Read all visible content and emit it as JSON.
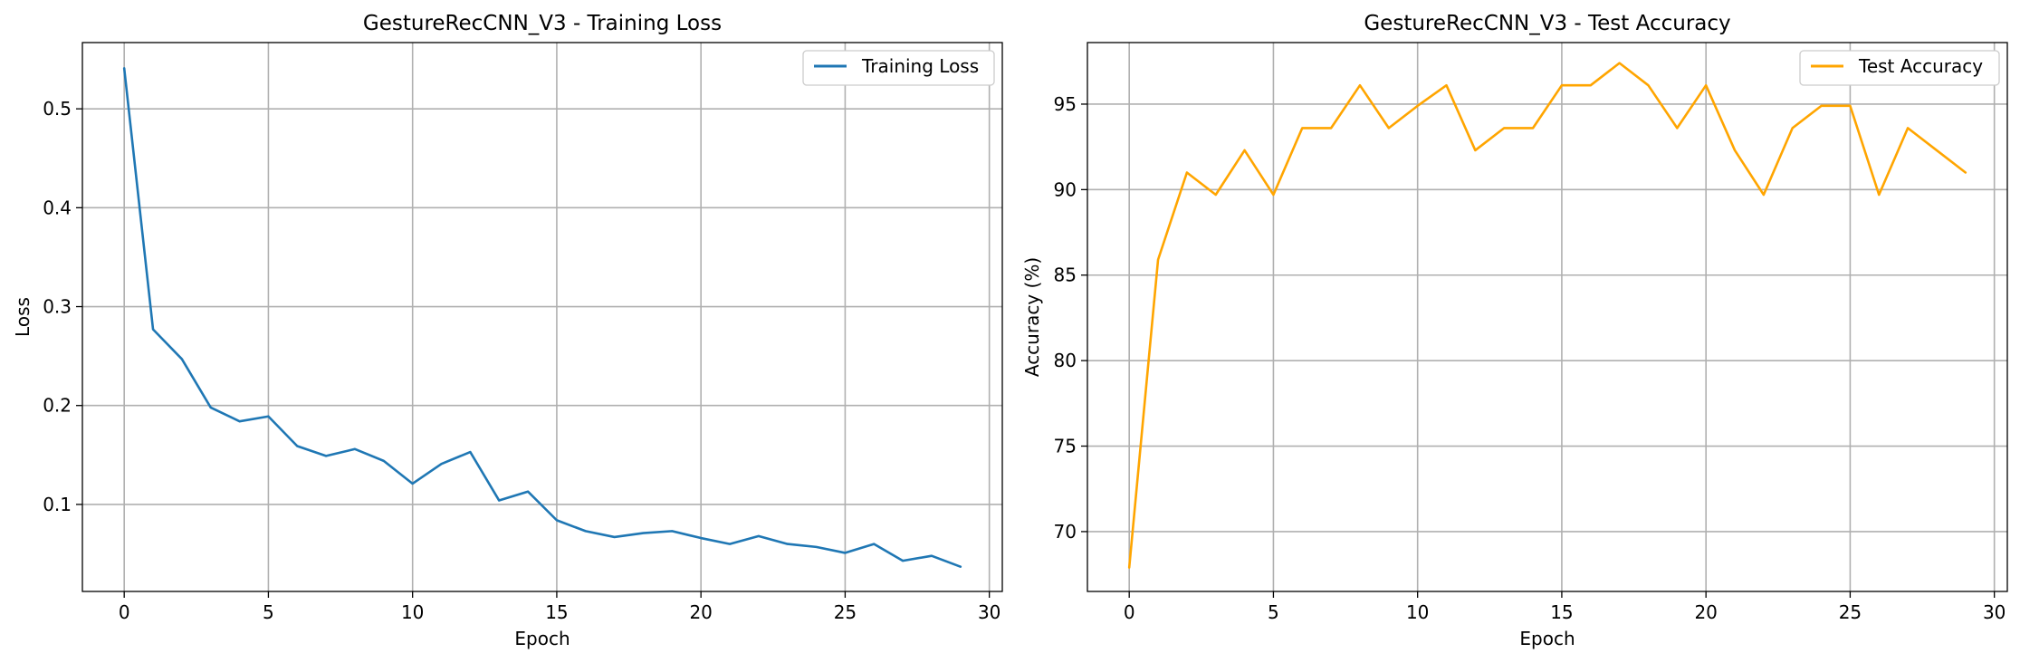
{
  "chart_data": [
    {
      "type": "line",
      "title": "GestureRecCNN_V3 - Training Loss",
      "xlabel": "Epoch",
      "ylabel": "Loss",
      "xlim": [
        -1.45,
        30.45
      ],
      "ylim": [
        0.012,
        0.567
      ],
      "xticks": [
        0,
        5,
        10,
        15,
        20,
        25,
        30
      ],
      "yticks": [
        0.1,
        0.2,
        0.3,
        0.4,
        0.5
      ],
      "xtick_labels": [
        "0",
        "5",
        "10",
        "15",
        "20",
        "25",
        "30"
      ],
      "ytick_labels": [
        "0.1",
        "0.2",
        "0.3",
        "0.4",
        "0.5"
      ],
      "grid": true,
      "legend_position": "top-right",
      "series": [
        {
          "name": "Training Loss",
          "color": "#1f77b4",
          "x": [
            0,
            1,
            2,
            3,
            4,
            5,
            6,
            7,
            8,
            9,
            10,
            11,
            12,
            13,
            14,
            15,
            16,
            17,
            18,
            19,
            20,
            21,
            22,
            23,
            24,
            25,
            26,
            27,
            28,
            29
          ],
          "y": [
            0.541,
            0.277,
            0.247,
            0.198,
            0.184,
            0.189,
            0.159,
            0.149,
            0.156,
            0.144,
            0.121,
            0.141,
            0.153,
            0.104,
            0.113,
            0.084,
            0.073,
            0.067,
            0.071,
            0.073,
            0.066,
            0.06,
            0.068,
            0.06,
            0.057,
            0.051,
            0.06,
            0.043,
            0.048,
            0.037
          ]
        }
      ]
    },
    {
      "type": "line",
      "title": "GestureRecCNN_V3 - Test Accuracy",
      "xlabel": "Epoch",
      "ylabel": "Accuracy (%)",
      "xlim": [
        -1.45,
        30.45
      ],
      "ylim": [
        66.5,
        98.6
      ],
      "xticks": [
        0,
        5,
        10,
        15,
        20,
        25,
        30
      ],
      "yticks": [
        70,
        75,
        80,
        85,
        90,
        95
      ],
      "xtick_labels": [
        "0",
        "5",
        "10",
        "15",
        "20",
        "25",
        "30"
      ],
      "ytick_labels": [
        "70",
        "75",
        "80",
        "85",
        "90",
        "95"
      ],
      "grid": true,
      "legend_position": "top-right",
      "series": [
        {
          "name": "Test Accuracy",
          "color": "#ffa500",
          "x": [
            0,
            1,
            2,
            3,
            4,
            5,
            6,
            7,
            8,
            9,
            10,
            11,
            12,
            13,
            14,
            15,
            16,
            17,
            18,
            19,
            20,
            21,
            22,
            23,
            24,
            25,
            26,
            27,
            28,
            29
          ],
          "y": [
            67.9,
            85.9,
            91.0,
            89.7,
            92.3,
            89.7,
            93.6,
            93.6,
            96.1,
            93.6,
            94.9,
            96.1,
            92.3,
            93.6,
            93.6,
            96.1,
            96.1,
            97.4,
            96.1,
            93.6,
            96.1,
            92.3,
            89.7,
            93.6,
            94.9,
            94.9,
            89.7,
            93.6,
            92.3,
            91.0
          ]
        }
      ]
    }
  ]
}
